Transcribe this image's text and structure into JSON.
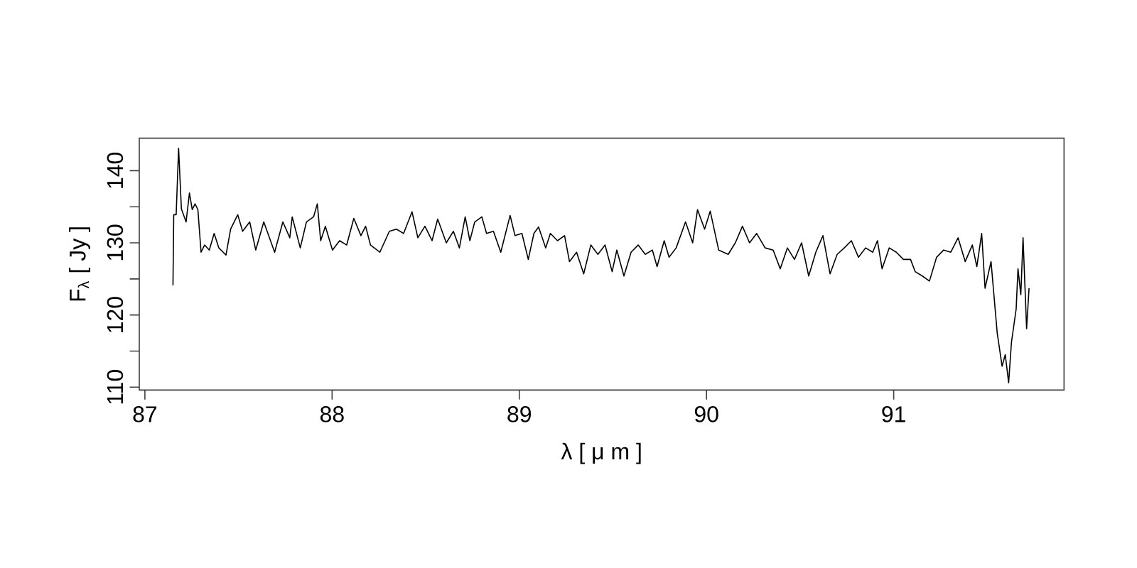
{
  "chart_data": {
    "type": "line",
    "xlabel": "λ [ μ m ]",
    "ylabel": "F$_{λ}$ [ Jy ]",
    "xlim": [
      86.97,
      91.91
    ],
    "ylim": [
      109.6,
      144.5
    ],
    "xticks": [
      87,
      88,
      89,
      90,
      91
    ],
    "yticks": [
      110,
      {
        "value": 115,
        "label": null
      },
      120,
      {
        "value": 125,
        "label": null
      },
      130,
      {
        "value": 135,
        "label": null
      },
      140
    ],
    "grid": false,
    "marker": "none",
    "line_style": "solid",
    "color": "#000000",
    "x": [
      87.15,
      87.154,
      87.167,
      87.18,
      87.195,
      87.22,
      87.238,
      87.253,
      87.268,
      87.283,
      87.3,
      87.319,
      87.344,
      87.37,
      87.395,
      87.433,
      87.458,
      87.496,
      87.522,
      87.56,
      87.592,
      87.635,
      87.693,
      87.737,
      87.774,
      87.787,
      87.83,
      87.863,
      87.901,
      87.921,
      87.939,
      87.964,
      88.002,
      88.04,
      88.078,
      88.116,
      88.154,
      88.179,
      88.205,
      88.255,
      88.306,
      88.344,
      88.382,
      88.427,
      88.458,
      88.496,
      88.534,
      88.564,
      88.61,
      88.648,
      88.68,
      88.711,
      88.736,
      88.762,
      88.8,
      88.825,
      88.862,
      88.901,
      88.951,
      88.977,
      89.014,
      89.048,
      89.078,
      89.103,
      89.141,
      89.166,
      89.204,
      89.242,
      89.268,
      89.306,
      89.344,
      89.382,
      89.42,
      89.458,
      89.496,
      89.521,
      89.559,
      89.597,
      89.635,
      89.673,
      89.711,
      89.736,
      89.774,
      89.8,
      89.838,
      89.888,
      89.926,
      89.952,
      89.99,
      90.02,
      90.065,
      90.116,
      90.154,
      90.192,
      90.23,
      90.268,
      90.313,
      90.356,
      90.394,
      90.432,
      90.47,
      90.508,
      90.546,
      90.584,
      90.622,
      90.66,
      90.698,
      90.736,
      90.774,
      90.812,
      90.85,
      90.888,
      90.913,
      90.938,
      90.976,
      91.014,
      91.052,
      91.09,
      91.115,
      91.153,
      91.191,
      91.229,
      91.267,
      91.305,
      91.344,
      91.382,
      91.42,
      91.444,
      91.47,
      91.488,
      91.52,
      91.553,
      91.579,
      91.596,
      91.614,
      91.629,
      91.654,
      91.664,
      91.679,
      91.691,
      91.71,
      91.723
    ],
    "values": [
      124.1,
      133.9,
      133.9,
      143.1,
      134.7,
      132.9,
      136.9,
      134.6,
      135.4,
      134.6,
      128.7,
      129.7,
      129.0,
      131.3,
      129.3,
      128.3,
      131.9,
      133.9,
      131.6,
      132.9,
      129.0,
      132.9,
      128.7,
      132.9,
      130.7,
      133.6,
      129.3,
      132.9,
      133.6,
      135.4,
      130.3,
      132.3,
      129.0,
      130.3,
      129.7,
      133.4,
      131.0,
      132.3,
      129.7,
      128.7,
      131.6,
      131.9,
      131.3,
      134.3,
      130.7,
      132.3,
      130.3,
      133.3,
      130.0,
      131.6,
      129.3,
      133.6,
      130.3,
      132.9,
      133.6,
      131.3,
      131.6,
      128.7,
      133.8,
      131.0,
      131.3,
      127.7,
      131.3,
      132.2,
      129.3,
      131.3,
      130.3,
      131.0,
      127.4,
      128.7,
      125.7,
      129.7,
      128.4,
      129.7,
      126.0,
      129.0,
      125.4,
      128.7,
      129.7,
      128.4,
      129.0,
      126.7,
      130.3,
      128.0,
      129.3,
      132.9,
      130.0,
      134.6,
      131.9,
      134.4,
      129.0,
      128.4,
      130.0,
      132.3,
      130.0,
      131.3,
      129.3,
      129.0,
      126.4,
      129.3,
      127.7,
      130.0,
      125.4,
      128.7,
      131.0,
      125.7,
      128.4,
      129.3,
      130.3,
      128.0,
      129.3,
      128.7,
      130.3,
      126.4,
      129.3,
      128.7,
      127.7,
      127.7,
      126.0,
      125.4,
      124.7,
      128.0,
      129.0,
      128.7,
      130.7,
      127.4,
      129.7,
      126.7,
      131.3,
      123.7,
      127.4,
      117.5,
      112.9,
      114.5,
      110.6,
      116.2,
      120.8,
      126.4,
      122.8,
      130.7,
      118.1,
      123.7
    ]
  }
}
